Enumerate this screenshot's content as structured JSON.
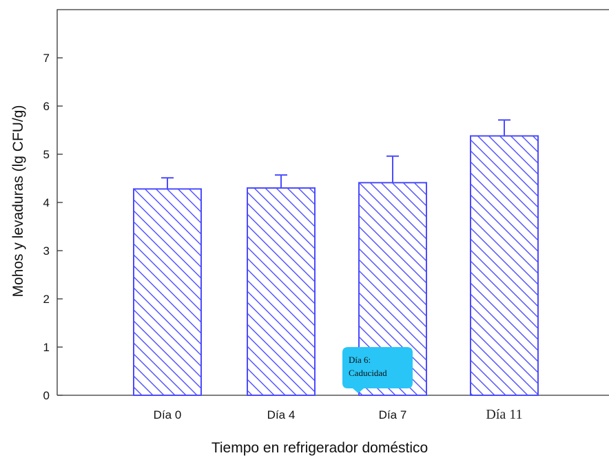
{
  "chart_data": {
    "type": "bar",
    "categories": [
      "Día 0",
      "Día 4",
      "Día 7",
      "Día 11"
    ],
    "values": [
      4.28,
      4.3,
      4.41,
      5.38
    ],
    "error_bars": [
      0.23,
      0.27,
      0.55,
      0.33
    ],
    "xlabel": "Tiempo en refrigerador doméstico",
    "ylabel": "Mohos y levaduras (lg CFU/g)",
    "ylim": [
      0,
      8
    ],
    "yticks": [
      0,
      1,
      2,
      3,
      4,
      5,
      6,
      7
    ],
    "grid": false,
    "bar_fill": "diagonal-hatch",
    "bar_color": "#4b4bff",
    "annotation": {
      "line1": "Día 6:",
      "line2": "Caducidad",
      "color": "#29c5f6",
      "category": "Día 7"
    }
  }
}
